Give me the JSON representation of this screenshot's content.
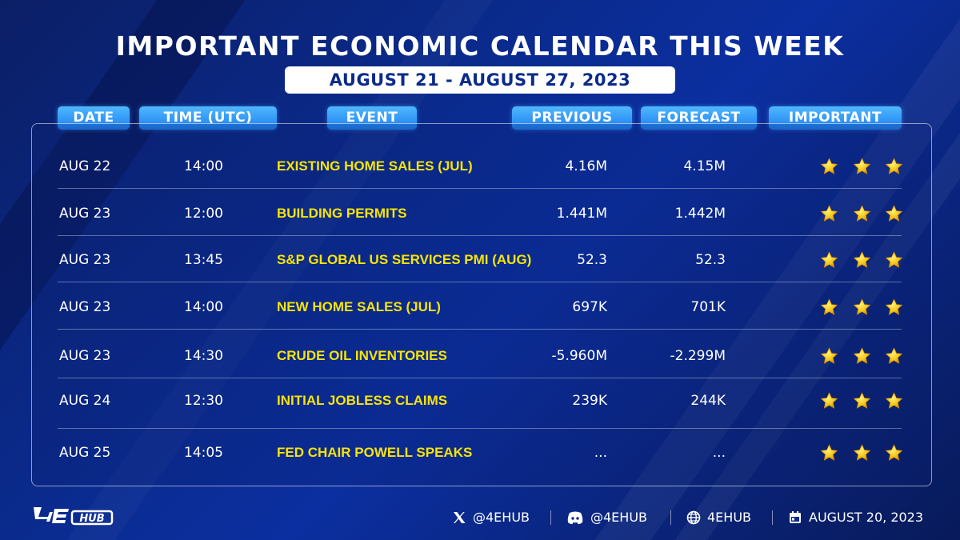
{
  "header": {
    "title": "IMPORTANT ECONOMIC CALENDAR THIS WEEK",
    "date_range": "AUGUST 21 - AUGUST 27, 2023"
  },
  "columns": {
    "date": "DATE",
    "time": "TIME (UTC)",
    "event": "EVENT",
    "previous": "PREVIOUS",
    "forecast": "FORECAST",
    "important": "IMPORTANT"
  },
  "rows": [
    {
      "date": "AUG 22",
      "time": "14:00",
      "event": "EXISTING HOME SALES (JUL)",
      "previous": "4.16M",
      "forecast": "4.15M",
      "importance_stars": 3
    },
    {
      "date": "AUG 23",
      "time": "12:00",
      "event": "BUILDING PERMITS",
      "previous": "1.441M",
      "forecast": "1.442M",
      "importance_stars": 3
    },
    {
      "date": "AUG 23",
      "time": "13:45",
      "event": "S&P GLOBAL US SERVICES PMI (AUG)",
      "previous": "52.3",
      "forecast": "52.3",
      "importance_stars": 3
    },
    {
      "date": "AUG 23",
      "time": "14:00",
      "event": "NEW HOME SALES (JUL)",
      "previous": "697K",
      "forecast": "701K",
      "importance_stars": 3
    },
    {
      "date": "AUG 23",
      "time": "14:30",
      "event": "CRUDE OIL INVENTORIES",
      "previous": "-5.960M",
      "forecast": "-2.299M",
      "importance_stars": 3
    },
    {
      "date": "AUG 24",
      "time": "12:30",
      "event": "INITIAL JOBLESS CLAIMS",
      "previous": "239K",
      "forecast": "244K",
      "importance_stars": 3
    },
    {
      "date": "AUG 25",
      "time": "14:05",
      "event": "FED CHAIR POWELL SPEAKS",
      "previous": "...",
      "forecast": "...",
      "importance_stars": 3
    }
  ],
  "footer": {
    "logo_text": "4EHUB",
    "x_handle": "@4EHUB",
    "discord_handle": "@4EHUB",
    "website": "4EHUB",
    "date": "AUGUST 20, 2023"
  },
  "colors": {
    "event_text": "#f7e500",
    "header_pill": "#2a8cf5",
    "star": "#f5c518"
  },
  "icons": {
    "x": "x-logo-icon",
    "discord": "discord-icon",
    "web": "globe-icon",
    "calendar": "calendar-icon",
    "star": "star-icon"
  }
}
